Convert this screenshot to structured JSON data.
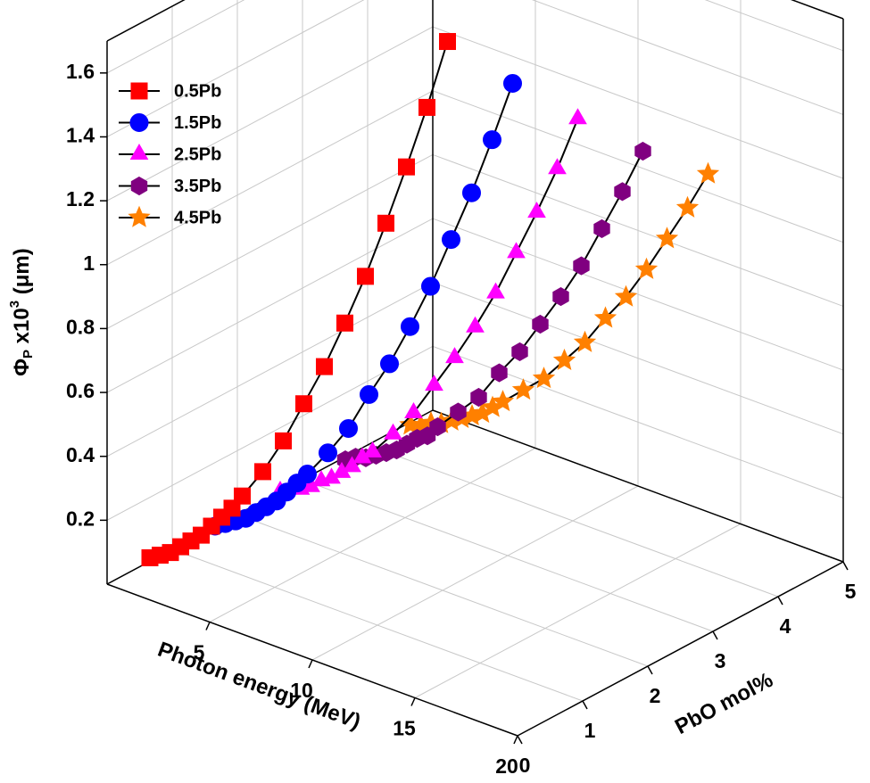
{
  "chart_data": {
    "type": "line3d",
    "x_label": "Photon energy (MeV)",
    "y_label": "PbO mol%",
    "z_label": [
      "Φ",
      "P",
      " x10",
      "3",
      " (μm)"
    ],
    "xlim": [
      0,
      20
    ],
    "xticks": [
      5,
      10,
      15,
      20
    ],
    "ylim": [
      0,
      5
    ],
    "yticks": [
      0,
      1,
      2,
      3,
      4,
      5
    ],
    "zlim": [
      0,
      1.7
    ],
    "zticks": [
      0.2,
      0.4,
      0.6,
      0.8,
      1.0,
      1.2,
      1.4,
      1.6
    ],
    "grid": true,
    "legend": "upper left",
    "line_color": "#000000",
    "x": [
      0.5,
      1,
      1.5,
      2,
      2.5,
      3,
      3.5,
      4,
      4.5,
      5,
      6,
      7,
      8,
      9,
      10,
      11,
      12,
      13,
      14,
      15
    ],
    "series": [
      {
        "name": "0.5Pb",
        "pbo_mol": 0.5,
        "color": "#ff0000",
        "marker": "square",
        "values": [
          0.04,
          0.06,
          0.08,
          0.11,
          0.14,
          0.17,
          0.21,
          0.25,
          0.29,
          0.34,
          0.44,
          0.56,
          0.7,
          0.84,
          1.0,
          1.17,
          1.36,
          1.56,
          1.77,
          2.0
        ]
      },
      {
        "name": "1.5Pb",
        "pbo_mol": 1.5,
        "color": "#0000ff",
        "marker": "circle",
        "values": [
          0.03,
          0.05,
          0.07,
          0.09,
          0.12,
          0.15,
          0.18,
          0.22,
          0.26,
          0.3,
          0.39,
          0.49,
          0.62,
          0.74,
          0.88,
          1.03,
          1.2,
          1.37,
          1.56,
          1.76
        ]
      },
      {
        "name": "2.5Pb",
        "pbo_mol": 2.5,
        "color": "#ff00ff",
        "marker": "triangle",
        "values": [
          0.03,
          0.05,
          0.06,
          0.08,
          0.11,
          0.13,
          0.16,
          0.19,
          0.23,
          0.26,
          0.34,
          0.43,
          0.54,
          0.65,
          0.77,
          0.9,
          1.05,
          1.2,
          1.36,
          1.54
        ]
      },
      {
        "name": "3.5Pb",
        "pbo_mol": 3.5,
        "color": "#800080",
        "marker": "hexagon",
        "values": [
          0.02,
          0.04,
          0.05,
          0.07,
          0.09,
          0.11,
          0.14,
          0.17,
          0.19,
          0.23,
          0.3,
          0.37,
          0.47,
          0.56,
          0.67,
          0.78,
          0.9,
          1.04,
          1.18,
          1.33
        ]
      },
      {
        "name": "4.5Pb",
        "pbo_mol": 4.5,
        "color": "#ff8000",
        "marker": "star",
        "values": [
          0.02,
          0.03,
          0.05,
          0.06,
          0.08,
          0.1,
          0.12,
          0.14,
          0.17,
          0.2,
          0.26,
          0.32,
          0.4,
          0.48,
          0.58,
          0.67,
          0.78,
          0.9,
          1.02,
          1.15
        ]
      }
    ]
  }
}
